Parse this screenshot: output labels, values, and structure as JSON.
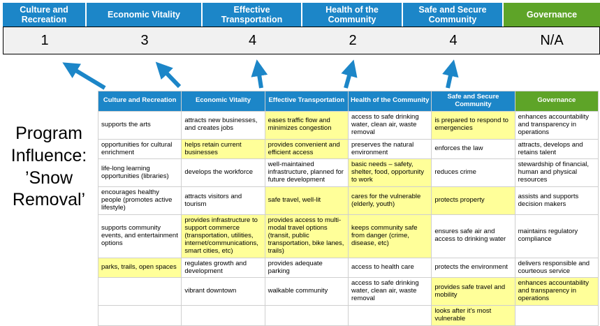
{
  "colors": {
    "blue": "#1C86C8",
    "green": "#5EA428",
    "highlight": "#FFFF99"
  },
  "title_lines": [
    "Program",
    "Influence:",
    "’Snow",
    "Removal’"
  ],
  "scoreboard": {
    "columns": [
      {
        "label": "Culture and Recreation",
        "score": "1"
      },
      {
        "label": "Economic Vitality",
        "score": "3"
      },
      {
        "label": "Effective Transportation",
        "score": "4"
      },
      {
        "label": "Health of the Community",
        "score": "2"
      },
      {
        "label": "Safe and Secure Community",
        "score": "4"
      },
      {
        "label": "Governance",
        "score": "N/A"
      }
    ]
  },
  "matrix": {
    "headers": [
      "Culture and Recreation",
      "Economic Vitality",
      "Effective Transportation",
      "Health of the Community",
      "Safe and Secure Community",
      "Governance"
    ],
    "rows": [
      [
        {
          "t": "supports the arts",
          "h": false
        },
        {
          "t": "attracts new businesses, and creates jobs",
          "h": false
        },
        {
          "t": "eases traffic flow and minimizes congestion",
          "h": true
        },
        {
          "t": "access to safe drinking water, clean air, waste removal",
          "h": false
        },
        {
          "t": "is prepared to respond to emergencies",
          "h": true
        },
        {
          "t": "enhances accountability and transparency in operations",
          "h": false
        }
      ],
      [
        {
          "t": "opportunities for cultural enrichment",
          "h": false
        },
        {
          "t": "helps retain current businesses",
          "h": true
        },
        {
          "t": "provides convenient and efficient access",
          "h": true
        },
        {
          "t": "preserves the natural environment",
          "h": false
        },
        {
          "t": "enforces the law",
          "h": false
        },
        {
          "t": "attracts, develops and retains talent",
          "h": false
        }
      ],
      [
        {
          "t": "life-long learning opportunities (libraries)",
          "h": false
        },
        {
          "t": "develops the workforce",
          "h": false
        },
        {
          "t": "well-maintained infrastructure, planned for future development",
          "h": false
        },
        {
          "t": "basic needs – safety, shelter, food, opportunity to work",
          "h": true
        },
        {
          "t": "reduces crime",
          "h": false
        },
        {
          "t": "stewardship of financial, human and physical resources",
          "h": false
        }
      ],
      [
        {
          "t": "encourages healthy people (promotes active lifestyle)",
          "h": false
        },
        {
          "t": "attracts visitors and tourism",
          "h": false
        },
        {
          "t": "safe travel, well-lit",
          "h": true
        },
        {
          "t": "cares for the vulnerable (elderly, youth)",
          "h": true
        },
        {
          "t": "protects property",
          "h": true
        },
        {
          "t": "assists and supports decision makers",
          "h": false
        }
      ],
      [
        {
          "t": "supports community events, and entertainment options",
          "h": false
        },
        {
          "t": "provides infrastructure to support commerce (transportation, utilities, internet/communications, smart cities, etc)",
          "h": true
        },
        {
          "t": "provides access to multi-modal travel options (transit, public transportation, bike lanes, trails)",
          "h": true
        },
        {
          "t": "keeps community safe from danger (crime, disease, etc)",
          "h": true
        },
        {
          "t": "ensures safe air and access to drinking water",
          "h": false
        },
        {
          "t": "maintains regulatory compliance",
          "h": false
        }
      ],
      [
        {
          "t": "parks, trails, open spaces",
          "h": true
        },
        {
          "t": "regulates growth and development",
          "h": false
        },
        {
          "t": "provides adequate parking",
          "h": false
        },
        {
          "t": "access to health care",
          "h": false
        },
        {
          "t": "protects the environment",
          "h": false
        },
        {
          "t": "delivers responsible and courteous service",
          "h": false
        }
      ],
      [
        {
          "t": "",
          "h": false
        },
        {
          "t": "vibrant downtown",
          "h": false
        },
        {
          "t": "walkable community",
          "h": false
        },
        {
          "t": "access to safe drinking water, clean air, waste removal",
          "h": false
        },
        {
          "t": "provides safe travel and mobility",
          "h": true
        },
        {
          "t": "enhances accountability and transparency in operations",
          "h": true
        }
      ],
      [
        {
          "t": "",
          "h": false
        },
        {
          "t": "",
          "h": false
        },
        {
          "t": "",
          "h": false
        },
        {
          "t": "",
          "h": false
        },
        {
          "t": "looks after it's most vulnerable",
          "h": true
        },
        {
          "t": "",
          "h": false
        }
      ]
    ]
  }
}
